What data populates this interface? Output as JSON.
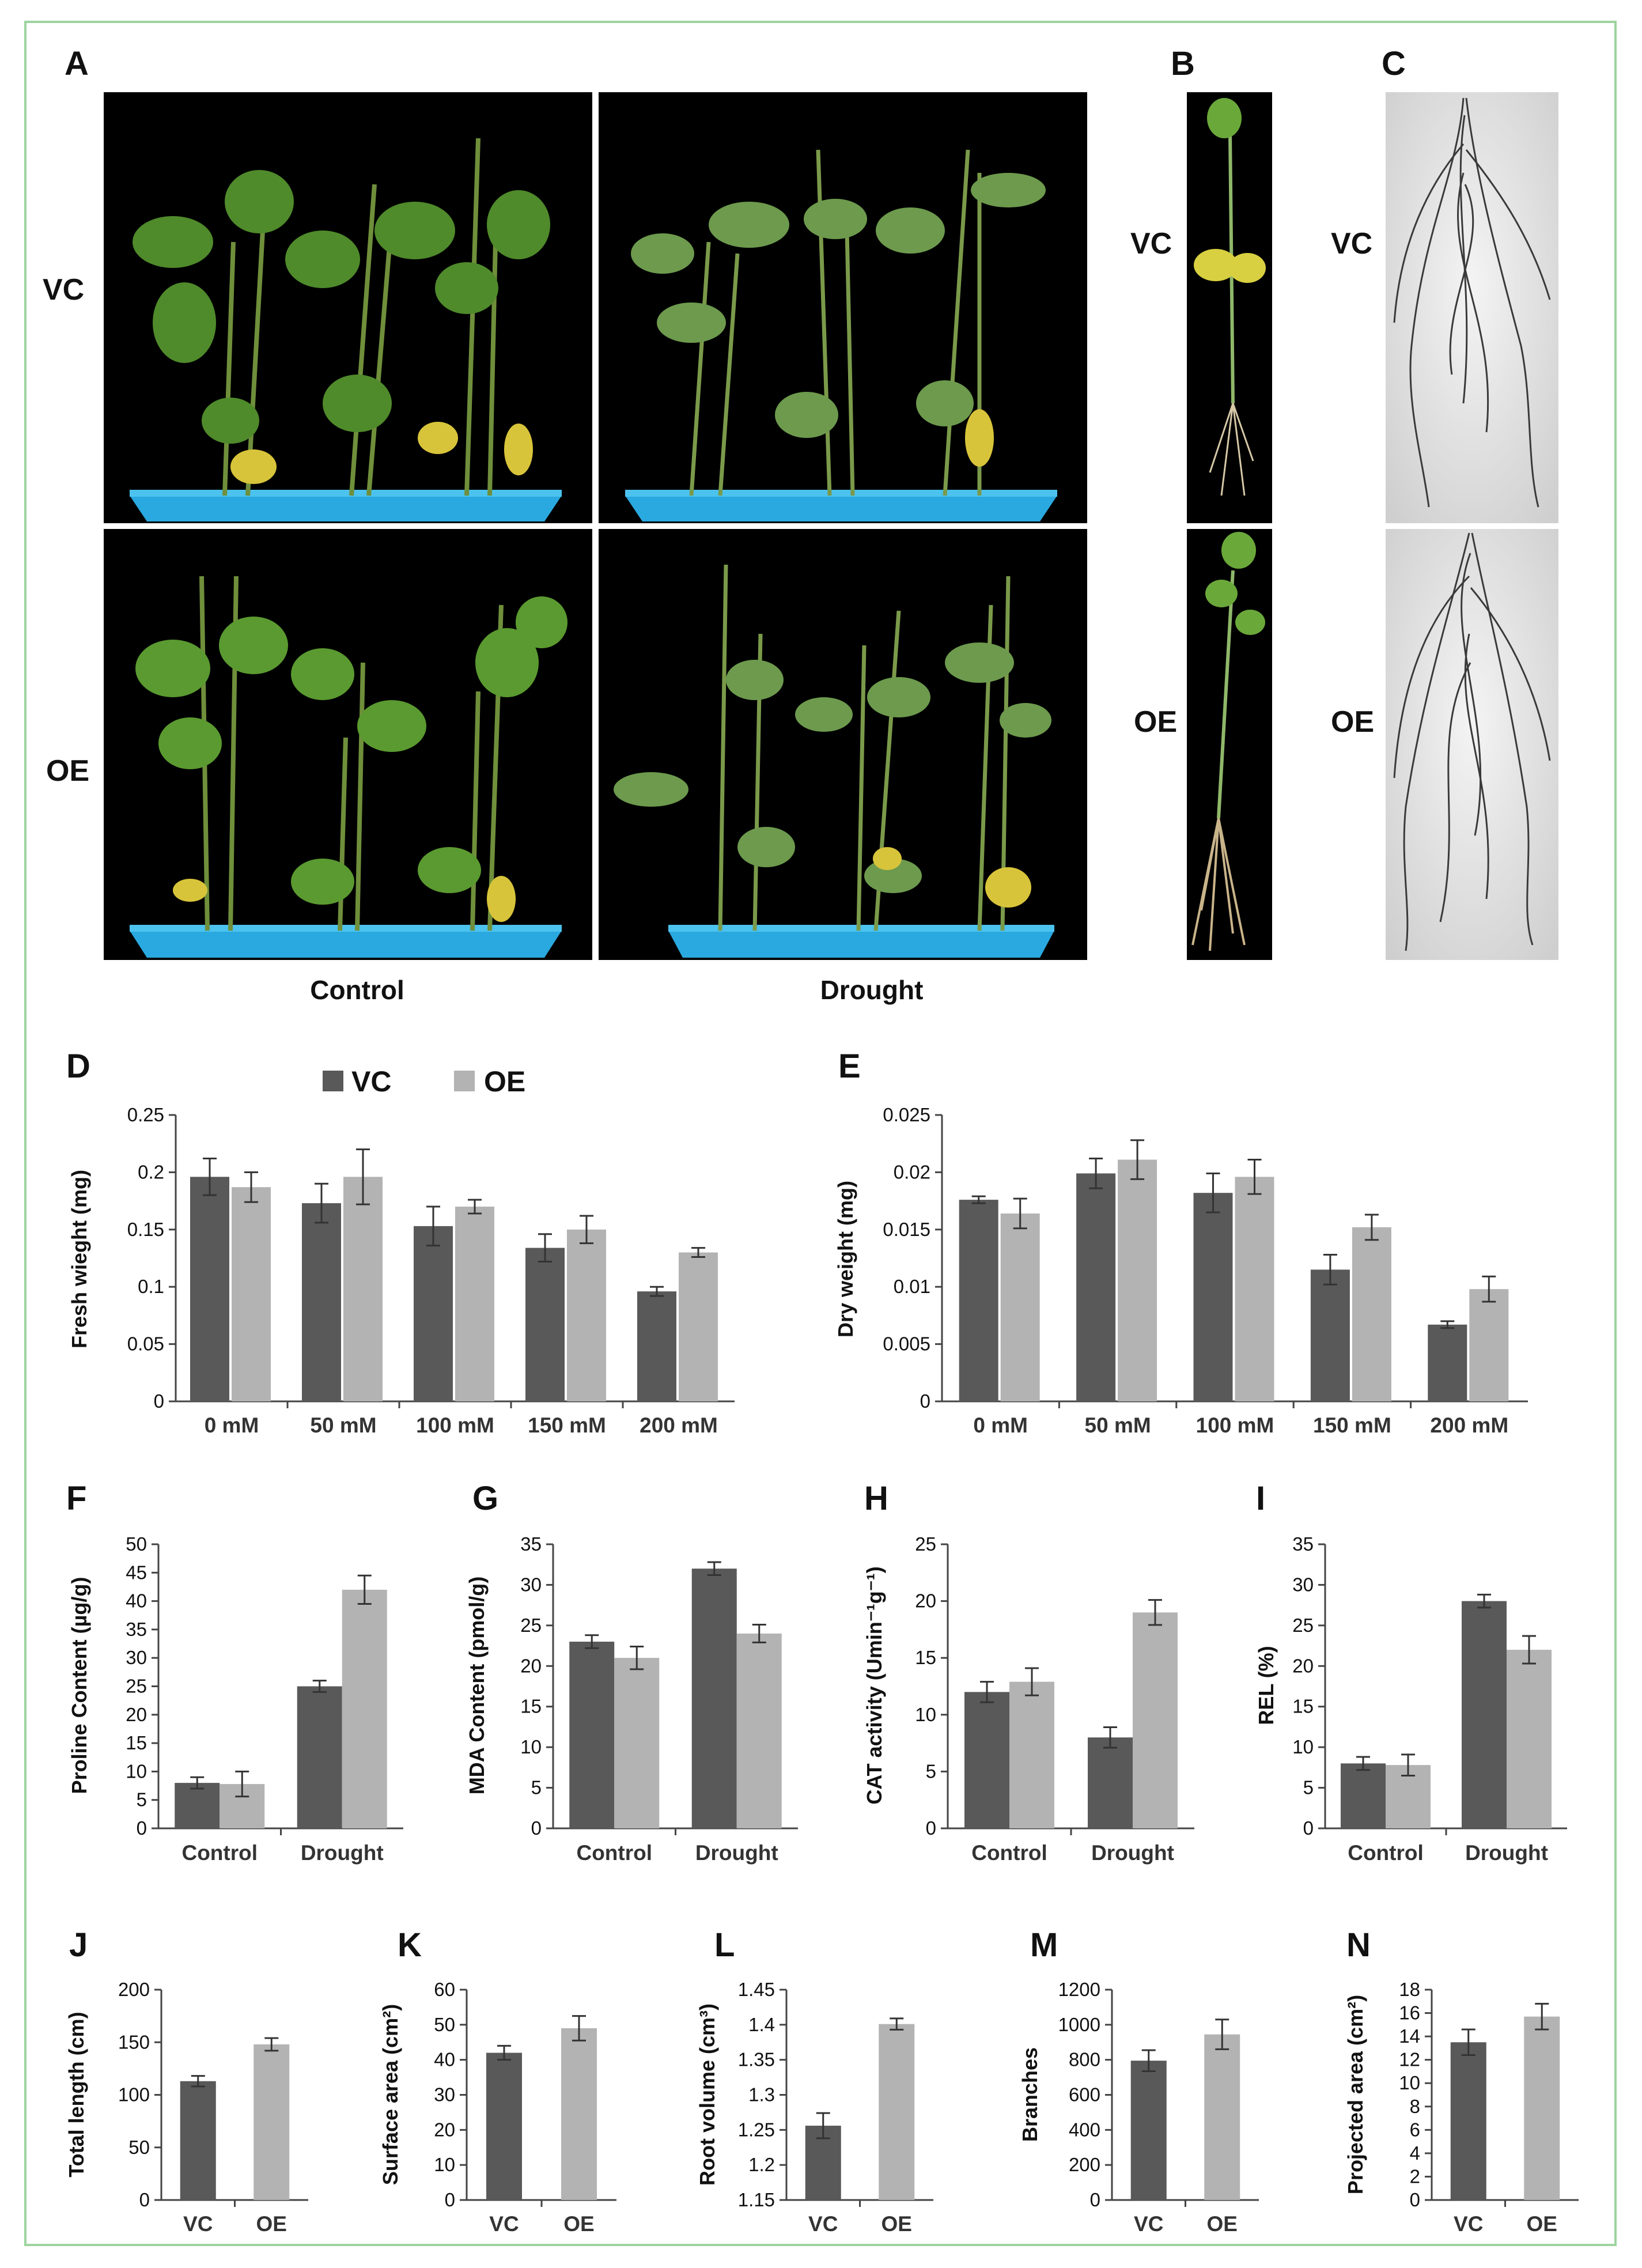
{
  "colors": {
    "vc": "#595959",
    "oe": "#b3b3b3",
    "frame": "#9dd49f"
  },
  "photo_panels": {
    "A": {
      "letter": "A",
      "row_labels": [
        "VC",
        "OE"
      ],
      "col_labels": [
        "Control",
        "Drought"
      ]
    },
    "B": {
      "letter": "B",
      "row_labels": [
        "VC",
        "OE"
      ]
    },
    "C": {
      "letter": "C",
      "row_labels": [
        "VC",
        "OE"
      ]
    }
  },
  "legend": {
    "vc": "VC",
    "oe": "OE"
  },
  "chart_data": [
    {
      "id": "D",
      "letter": "D",
      "type": "bar",
      "categories": [
        "0 mM",
        "50 mM",
        "100 mM",
        "150 mM",
        "200 mM"
      ],
      "series": [
        {
          "name": "VC",
          "values": [
            0.196,
            0.173,
            0.153,
            0.134,
            0.096
          ],
          "errors": [
            0.016,
            0.017,
            0.017,
            0.012,
            0.004
          ]
        },
        {
          "name": "OE",
          "values": [
            0.187,
            0.196,
            0.17,
            0.15,
            0.13
          ],
          "errors": [
            0.013,
            0.024,
            0.006,
            0.012,
            0.004
          ]
        }
      ],
      "ylabel": "Fresh wieght (mg)",
      "ylim": [
        0,
        0.25
      ],
      "yticks": [
        "0",
        "0.05",
        "0.1",
        "0.15",
        "0.2",
        "0.25"
      ]
    },
    {
      "id": "E",
      "letter": "E",
      "type": "bar",
      "categories": [
        "0 mM",
        "50 mM",
        "100 mM",
        "150 mM",
        "200 mM"
      ],
      "series": [
        {
          "name": "VC",
          "values": [
            0.0176,
            0.0199,
            0.0182,
            0.0115,
            0.0067
          ],
          "errors": [
            0.0003,
            0.0013,
            0.0017,
            0.0013,
            0.0003
          ]
        },
        {
          "name": "OE",
          "values": [
            0.0164,
            0.0211,
            0.0196,
            0.0152,
            0.0098
          ],
          "errors": [
            0.0013,
            0.0017,
            0.0015,
            0.0011,
            0.0011
          ]
        }
      ],
      "ylabel": "Dry weight (mg)",
      "ylim": [
        0,
        0.025
      ],
      "yticks": [
        "0",
        "0.005",
        "0.01",
        "0.015",
        "0.02",
        "0.025"
      ]
    },
    {
      "id": "F",
      "letter": "F",
      "type": "bar",
      "categories": [
        "Control",
        "Drought"
      ],
      "series": [
        {
          "name": "VC",
          "values": [
            8,
            25
          ],
          "errors": [
            1,
            1
          ]
        },
        {
          "name": "OE",
          "values": [
            7.8,
            42
          ],
          "errors": [
            2.2,
            2.5
          ]
        }
      ],
      "ylabel": "Proline Content (µg/g)",
      "ylim": [
        0,
        50
      ],
      "yticks": [
        "0",
        "5",
        "10",
        "15",
        "20",
        "25",
        "30",
        "35",
        "40",
        "45",
        "50"
      ]
    },
    {
      "id": "G",
      "letter": "G",
      "type": "bar",
      "categories": [
        "Control",
        "Drought"
      ],
      "series": [
        {
          "name": "VC",
          "values": [
            23,
            32
          ],
          "errors": [
            0.8,
            0.8
          ]
        },
        {
          "name": "OE",
          "values": [
            21,
            24
          ],
          "errors": [
            1.4,
            1.1
          ]
        }
      ],
      "ylabel": "MDA Content (pmol/g)",
      "ylim": [
        0,
        35
      ],
      "yticks": [
        "0",
        "5",
        "10",
        "15",
        "20",
        "25",
        "30",
        "35"
      ]
    },
    {
      "id": "H",
      "letter": "H",
      "type": "bar",
      "categories": [
        "Control",
        "Drought"
      ],
      "series": [
        {
          "name": "VC",
          "values": [
            12,
            8
          ],
          "errors": [
            0.9,
            0.9
          ]
        },
        {
          "name": "OE",
          "values": [
            12.9,
            19
          ],
          "errors": [
            1.2,
            1.1
          ]
        }
      ],
      "ylabel": "CAT activity (Umin⁻¹g⁻¹)",
      "ylim": [
        0,
        25
      ],
      "yticks": [
        "0",
        "5",
        "10",
        "15",
        "20",
        "25"
      ]
    },
    {
      "id": "I",
      "letter": "I",
      "type": "bar",
      "categories": [
        "Control",
        "Drought"
      ],
      "series": [
        {
          "name": "VC",
          "values": [
            8,
            28
          ],
          "errors": [
            0.8,
            0.8
          ]
        },
        {
          "name": "OE",
          "values": [
            7.8,
            22
          ],
          "errors": [
            1.3,
            1.7
          ]
        }
      ],
      "ylabel": "REL (%)",
      "ylim": [
        0,
        35
      ],
      "yticks": [
        "0",
        "5",
        "10",
        "15",
        "20",
        "25",
        "30",
        "35"
      ]
    },
    {
      "id": "J",
      "letter": "J",
      "type": "bar",
      "categories": [
        "VC",
        "OE"
      ],
      "series": [
        {
          "name": "",
          "values": [
            113,
            148
          ],
          "errors": [
            5,
            6
          ]
        }
      ],
      "ylabel": "Total length (cm)",
      "ylim": [
        0,
        200
      ],
      "yticks": [
        "0",
        "50",
        "100",
        "150",
        "200"
      ]
    },
    {
      "id": "K",
      "letter": "K",
      "type": "bar",
      "categories": [
        "VC",
        "OE"
      ],
      "series": [
        {
          "name": "",
          "values": [
            42,
            49
          ],
          "errors": [
            2,
            3.5
          ]
        }
      ],
      "ylabel": "Surface area (cm²)",
      "ylim": [
        0,
        60
      ],
      "yticks": [
        "0",
        "10",
        "20",
        "30",
        "40",
        "50",
        "60"
      ]
    },
    {
      "id": "L",
      "letter": "L",
      "type": "bar",
      "categories": [
        "VC",
        "OE"
      ],
      "series": [
        {
          "name": "",
          "values": [
            1.256,
            1.401
          ],
          "errors": [
            0.018,
            0.008
          ]
        }
      ],
      "ylabel": "Root volume (cm³)",
      "ylim": [
        1.15,
        1.45
      ],
      "yticks": [
        "1.15",
        "1.2",
        "1.25",
        "1.3",
        "1.35",
        "1.4",
        "1.45"
      ]
    },
    {
      "id": "M",
      "letter": "M",
      "type": "bar",
      "categories": [
        "VC",
        "OE"
      ],
      "series": [
        {
          "name": "",
          "values": [
            795,
            945
          ],
          "errors": [
            60,
            85
          ]
        }
      ],
      "ylabel": "Branches",
      "ylim": [
        0,
        1200
      ],
      "yticks": [
        "0",
        "200",
        "400",
        "600",
        "800",
        "1000",
        "1200"
      ]
    },
    {
      "id": "N",
      "letter": "N",
      "type": "bar",
      "categories": [
        "VC",
        "OE"
      ],
      "series": [
        {
          "name": "",
          "values": [
            13.5,
            15.7
          ],
          "errors": [
            1.1,
            1.1
          ]
        }
      ],
      "ylabel": "Projected area (cm²)",
      "ylim": [
        0,
        18
      ],
      "yticks": [
        "0",
        "2",
        "4",
        "6",
        "8",
        "10",
        "12",
        "14",
        "16",
        "18"
      ]
    }
  ]
}
